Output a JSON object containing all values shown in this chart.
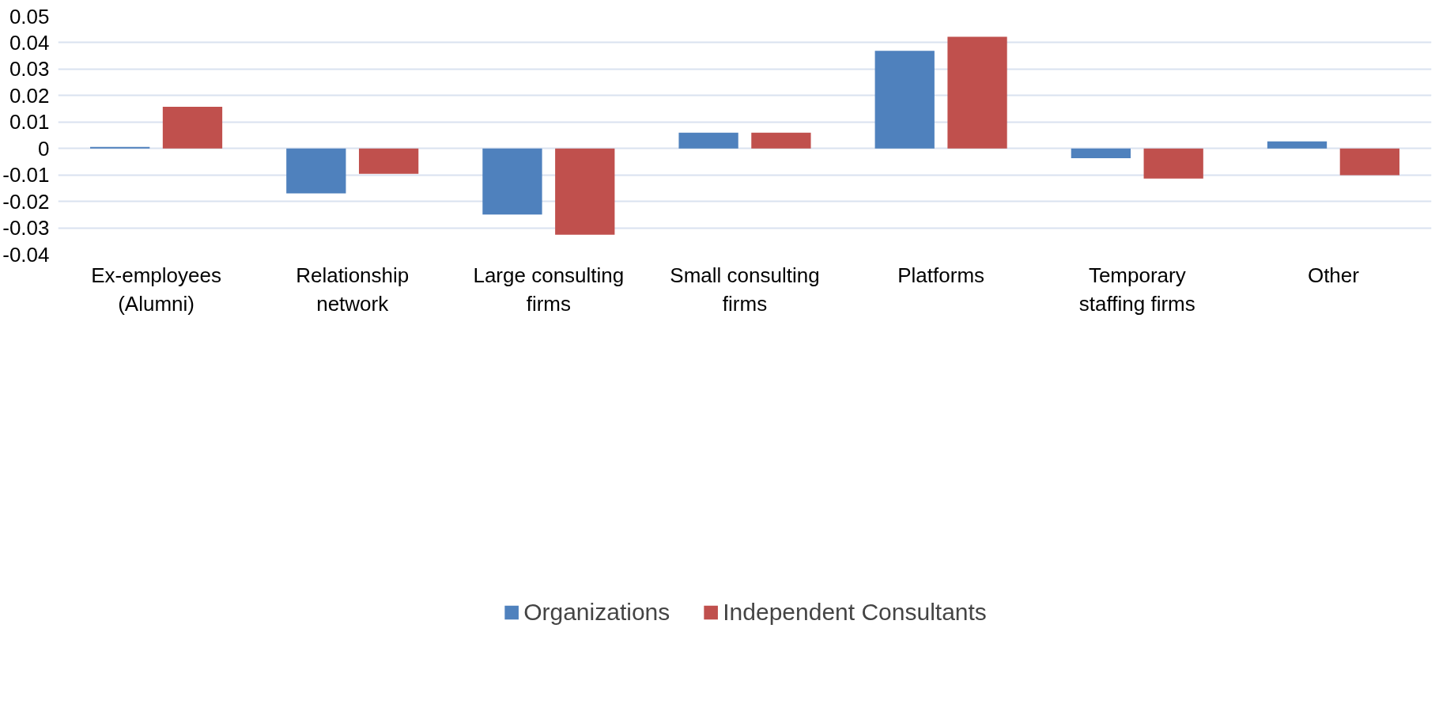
{
  "chart_data": {
    "type": "bar",
    "categories": [
      "Ex-employees (Alumni)",
      "Relationship network",
      "Large consulting firms",
      "Small consulting firms",
      "Platforms",
      "Temporary staffing firms",
      "Other"
    ],
    "series": [
      {
        "name": "Organizations",
        "color": "#4f81bd",
        "values": [
          0.0006,
          -0.017,
          -0.025,
          0.006,
          0.0369,
          -0.0037,
          0.0027
        ]
      },
      {
        "name": "Independent Consultants",
        "color": "#c0504d",
        "values": [
          0.0158,
          -0.0096,
          -0.0326,
          0.006,
          0.0422,
          -0.0114,
          -0.0101
        ]
      }
    ],
    "ylim": [
      -0.04,
      0.05
    ],
    "yticks": [
      {
        "value": -0.04,
        "label": "-0.04"
      },
      {
        "value": -0.03,
        "label": "-0.03"
      },
      {
        "value": -0.02,
        "label": "-0.02"
      },
      {
        "value": -0.01,
        "label": "-0.01"
      },
      {
        "value": 0,
        "label": "0"
      },
      {
        "value": 0.01,
        "label": "0.01"
      },
      {
        "value": 0.02,
        "label": "0.02"
      },
      {
        "value": 0.03,
        "label": "0.03"
      },
      {
        "value": 0.04,
        "label": "0.04"
      },
      {
        "value": 0.05,
        "label": "0.05"
      }
    ],
    "grid": "y",
    "legend": "bottom"
  }
}
